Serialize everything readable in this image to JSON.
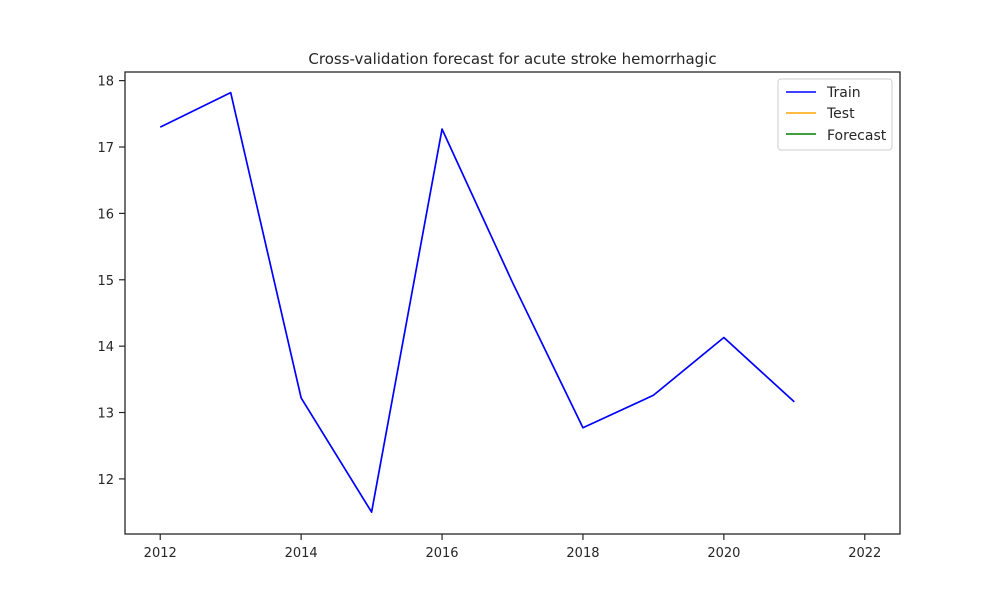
{
  "chart_data": {
    "type": "line",
    "title": "Cross-validation forecast for acute stroke hemorrhagic",
    "xlabel": "",
    "ylabel": "",
    "xlim": [
      2011.5,
      2022.5
    ],
    "ylim": [
      11.17,
      18.13
    ],
    "x_ticks": [
      "2012",
      "2014",
      "2016",
      "2018",
      "2020",
      "2022"
    ],
    "x_tick_values": [
      2012,
      2014,
      2016,
      2018,
      2020,
      2022
    ],
    "y_ticks": [
      "12",
      "13",
      "14",
      "15",
      "16",
      "17",
      "18"
    ],
    "y_tick_values": [
      12,
      13,
      14,
      15,
      16,
      17,
      18
    ],
    "grid": false,
    "legend_position": "top-right",
    "series": [
      {
        "name": "Train",
        "color": "#0000ff",
        "x": [
          2012,
          2013,
          2014,
          2015,
          2016,
          2017,
          2018,
          2019,
          2020,
          2021
        ],
        "y": [
          17.3,
          17.82,
          13.22,
          11.5,
          17.27,
          14.96,
          12.77,
          13.26,
          14.13,
          13.16
        ]
      },
      {
        "name": "Test",
        "color": "#ffa500",
        "x": [],
        "y": []
      },
      {
        "name": "Forecast",
        "color": "#008000",
        "x": [],
        "y": []
      }
    ]
  }
}
